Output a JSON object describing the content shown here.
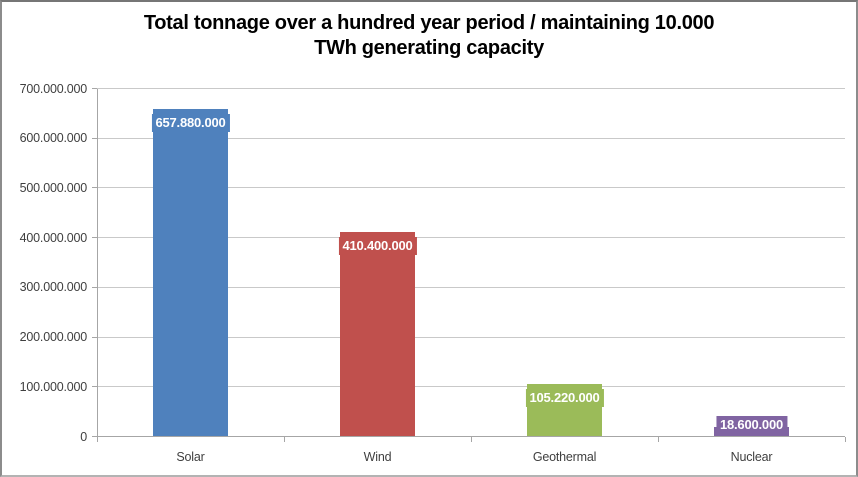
{
  "chart_data": {
    "type": "bar",
    "title": "Total tonnage over a hundred year period / maintaining 10.000 TWh generating capacity",
    "title_lines": [
      "Total tonnage over a hundred year period / maintaining 10.000",
      "TWh generating capacity"
    ],
    "categories": [
      "Solar",
      "Wind",
      "Geothermal",
      "Nuclear"
    ],
    "values": [
      657880000,
      410400000,
      105220000,
      18600000
    ],
    "value_labels": [
      "657.880.000",
      "410.400.000",
      "105.220.000",
      "18.600.000"
    ],
    "bar_colors": [
      "#4F81BD",
      "#C0504D",
      "#9BBB59",
      "#8064A2"
    ],
    "xlabel": "",
    "ylabel": "",
    "ylim": [
      0,
      700000000
    ],
    "y_ticks": [
      {
        "value": 0,
        "label": "0"
      },
      {
        "value": 100000000,
        "label": "100.000.000"
      },
      {
        "value": 200000000,
        "label": "200.000.000"
      },
      {
        "value": 300000000,
        "label": "300.000.000"
      },
      {
        "value": 400000000,
        "label": "400.000.000"
      },
      {
        "value": 500000000,
        "label": "500.000.000"
      },
      {
        "value": 600000000,
        "label": "600.000.000"
      },
      {
        "value": 700000000,
        "label": "700.000.000"
      }
    ],
    "grid": true,
    "legend": "none",
    "colors": {
      "background": "#FFFFFF",
      "frame_border": "#8C8C8C",
      "gridline": "#C9C9C9",
      "axis": "#A6A6A6",
      "tick_label": "#3F3F3F",
      "title_text": "#000000",
      "value_label_text": "#FFFFFF"
    }
  }
}
